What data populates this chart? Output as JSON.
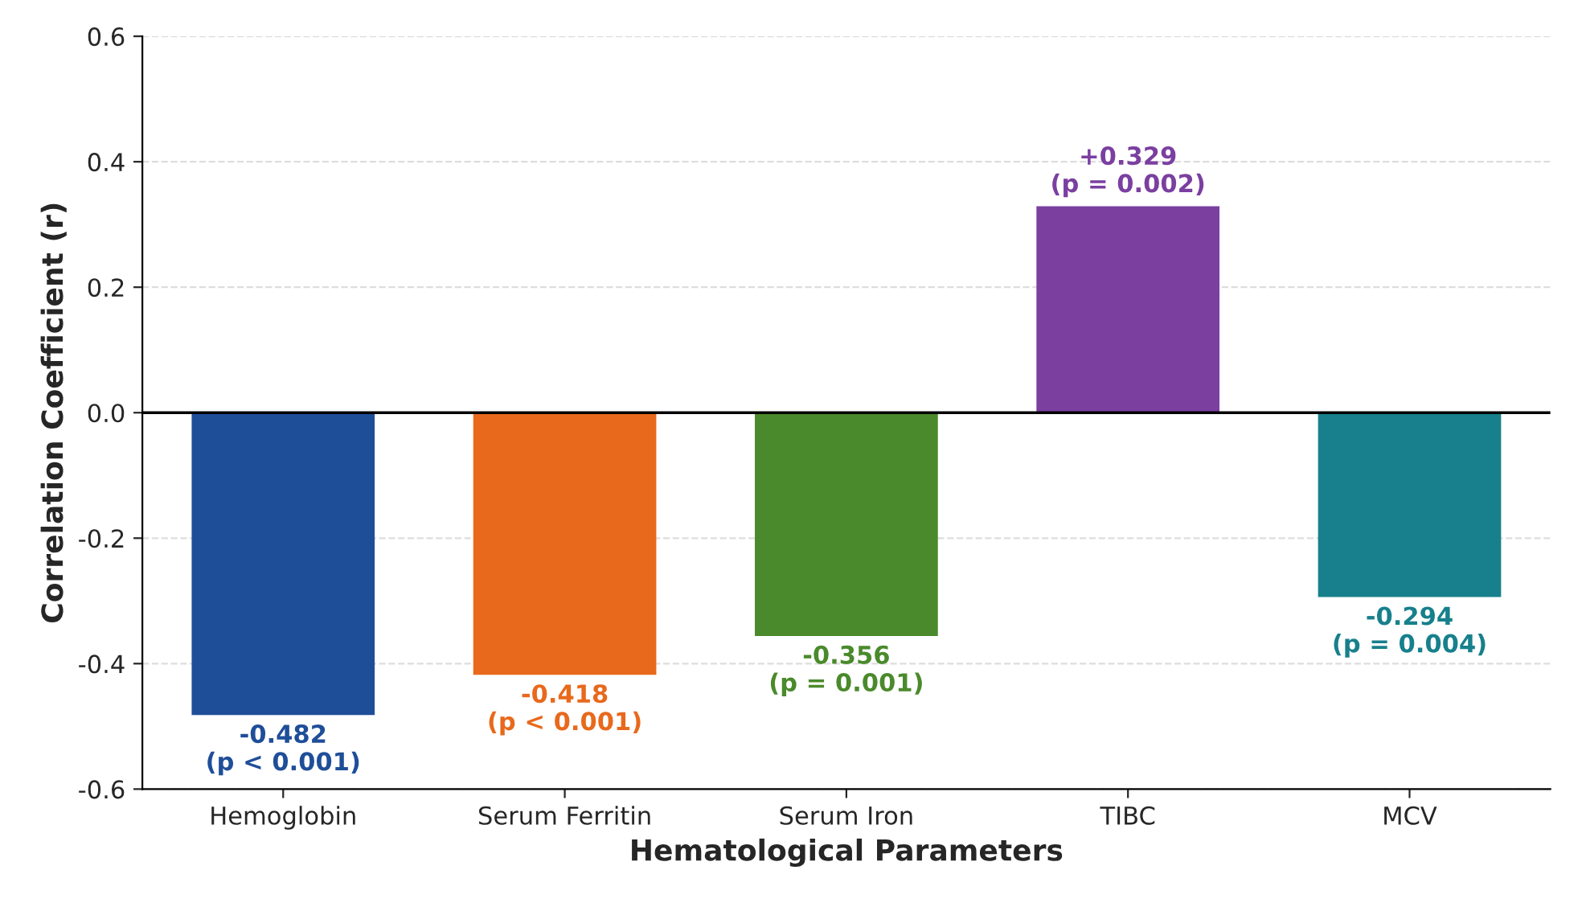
{
  "chart_data": {
    "type": "bar",
    "xlabel": "Hematological Parameters",
    "ylabel": "Correlation Coefficient (r)",
    "categories": [
      "Hemoglobin",
      "Serum Ferritin",
      "Serum Iron",
      "TIBC",
      "MCV"
    ],
    "values": [
      -0.482,
      -0.418,
      -0.356,
      0.329,
      -0.294
    ],
    "colors": [
      "#1f4e99",
      "#e8691c",
      "#4a8a2c",
      "#7b3fa0",
      "#17808c"
    ],
    "value_labels": [
      "-0.482\n(p < 0.001)",
      "-0.418\n(p < 0.001)",
      "-0.356\n(p = 0.001)",
      "+0.329\n(p = 0.002)",
      "-0.294\n(p = 0.004)"
    ],
    "ylim": [
      -0.6,
      0.6
    ],
    "yticks": [
      {
        "value": -0.6,
        "label": "-0.6"
      },
      {
        "value": -0.4,
        "label": "-0.4"
      },
      {
        "value": -0.2,
        "label": "-0.2"
      },
      {
        "value": 0,
        "label": "0.0"
      },
      {
        "value": 0.2,
        "label": "0.2"
      },
      {
        "value": 0.4,
        "label": "0.4"
      },
      {
        "value": 0.6,
        "label": "0.6"
      }
    ],
    "ref_lines": [
      {
        "axis": "y",
        "value": 0,
        "color": "#000000",
        "line_style": "solid"
      }
    ],
    "grid": "y"
  }
}
